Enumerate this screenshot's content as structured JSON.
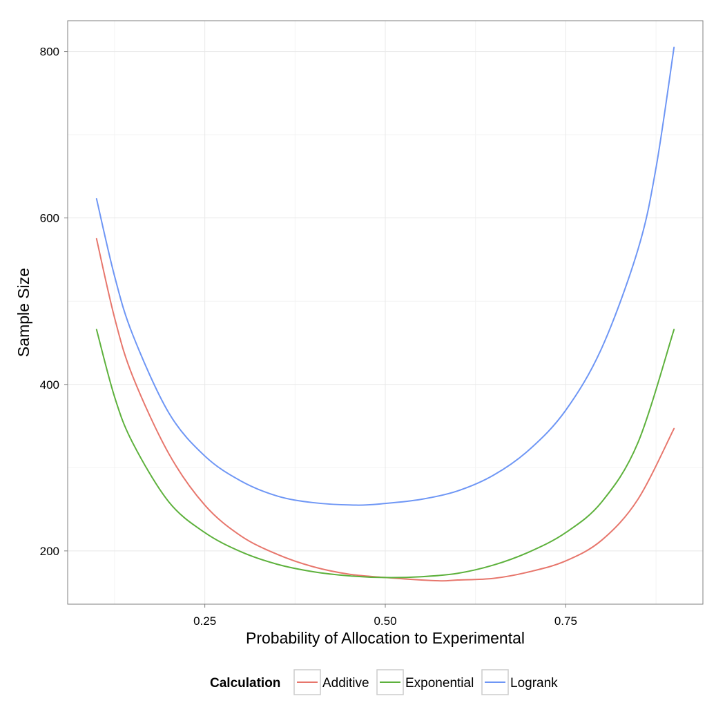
{
  "chart_data": {
    "type": "line",
    "title": "",
    "xlabel": "Probability of Allocation to Experimental",
    "ylabel": "Sample Size",
    "xlim": [
      0.06,
      0.94
    ],
    "ylim": [
      136,
      837
    ],
    "x_ticks": [
      0.25,
      0.5,
      0.75
    ],
    "x_tick_labels": [
      "0.25",
      "0.50",
      "0.75"
    ],
    "x_minor_ticks": [
      0.125,
      0.375,
      0.625,
      0.875
    ],
    "y_ticks": [
      200,
      400,
      600,
      800
    ],
    "y_tick_labels": [
      "200",
      "400",
      "600",
      "800"
    ],
    "y_minor_ticks": [
      300,
      500,
      700
    ],
    "grid": true,
    "legend": {
      "title": "Calculation",
      "position": "bottom"
    },
    "series": [
      {
        "name": "Additive",
        "color": "#E7766C",
        "x": [
          0.1,
          0.125,
          0.15,
          0.2,
          0.25,
          0.3,
          0.35,
          0.4,
          0.45,
          0.5,
          0.55,
          0.58,
          0.6,
          0.65,
          0.7,
          0.75,
          0.8,
          0.85,
          0.9
        ],
        "y": [
          575,
          480,
          410,
          317,
          255,
          218,
          196,
          181,
          172,
          168,
          165,
          164,
          165,
          167,
          175,
          188,
          213,
          262,
          347
        ]
      },
      {
        "name": "Exponential",
        "color": "#5DB13C",
        "x": [
          0.1,
          0.125,
          0.15,
          0.2,
          0.25,
          0.3,
          0.35,
          0.4,
          0.45,
          0.5,
          0.55,
          0.6,
          0.65,
          0.7,
          0.75,
          0.8,
          0.85,
          0.9
        ],
        "y": [
          466,
          385,
          330,
          259,
          222,
          199,
          184,
          175,
          170,
          168,
          169,
          173,
          183,
          199,
          222,
          259,
          330,
          466
        ]
      },
      {
        "name": "Logrank",
        "color": "#6E96F5",
        "x": [
          0.1,
          0.125,
          0.15,
          0.2,
          0.25,
          0.3,
          0.35,
          0.4,
          0.46,
          0.5,
          0.55,
          0.6,
          0.65,
          0.7,
          0.75,
          0.8,
          0.85,
          0.875,
          0.9
        ],
        "y": [
          623,
          530,
          460,
          366,
          314,
          284,
          266,
          258,
          255,
          257,
          262,
          272,
          291,
          322,
          369,
          444,
          562,
          660,
          805
        ]
      }
    ]
  }
}
